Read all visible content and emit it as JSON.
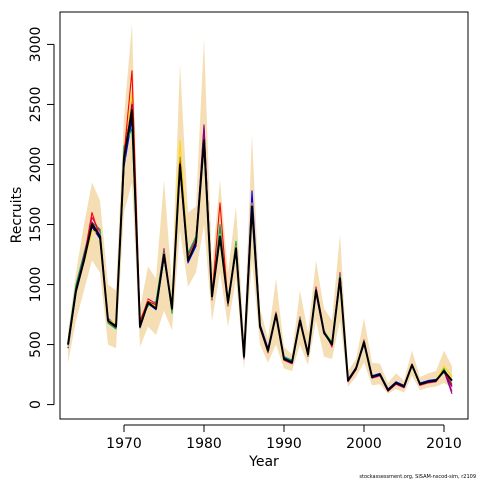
{
  "chart_data": {
    "type": "line",
    "xlabel": "Year",
    "ylabel": "Recruits",
    "xlim": [
      1962,
      2013
    ],
    "ylim": [
      -120,
      3270
    ],
    "x_ticks": [
      1970,
      1980,
      1990,
      2000,
      2010
    ],
    "y_ticks": [
      0,
      500,
      1000,
      1500,
      2000,
      2500,
      3000
    ],
    "footer": "stockassessment.org, SISAM-nscod-sim, r2109",
    "band_color": "#F5DEB3",
    "years": [
      1963,
      1964,
      1965,
      1966,
      1967,
      1968,
      1969,
      1970,
      1971,
      1972,
      1973,
      1974,
      1975,
      1976,
      1977,
      1978,
      1979,
      1980,
      1981,
      1982,
      1983,
      1984,
      1985,
      1986,
      1987,
      1988,
      1989,
      1990,
      1991,
      1992,
      1993,
      1994,
      1995,
      1996,
      1997,
      1998,
      1999,
      2000,
      2001,
      2002,
      2003,
      2004,
      2005,
      2006,
      2007,
      2008,
      2009,
      2010,
      2011
    ],
    "band_lower": [
      350,
      700,
      950,
      1200,
      1100,
      500,
      470,
      1600,
      1850,
      480,
      650,
      580,
      780,
      620,
      1450,
      980,
      1100,
      1500,
      700,
      1100,
      650,
      1050,
      300,
      1200,
      500,
      350,
      500,
      300,
      280,
      500,
      330,
      700,
      400,
      380,
      700,
      150,
      230,
      350,
      160,
      170,
      90,
      130,
      100,
      240,
      120,
      140,
      150,
      180,
      140
    ],
    "band_upper": [
      600,
      1100,
      1500,
      1850,
      1700,
      1000,
      950,
      2400,
      3170,
      800,
      1150,
      1050,
      1870,
      1000,
      2840,
      1600,
      1650,
      3050,
      1150,
      1870,
      1100,
      1650,
      550,
      2250,
      800,
      550,
      1050,
      480,
      420,
      950,
      600,
      1200,
      800,
      700,
      1420,
      280,
      380,
      720,
      350,
      340,
      180,
      260,
      200,
      450,
      230,
      260,
      280,
      450,
      320
    ],
    "series": [
      {
        "color": "#000000",
        "values": [
          500,
          950,
          1200,
          1500,
          1400,
          700,
          650,
          2050,
          2450,
          650,
          850,
          800,
          1250,
          800,
          2000,
          1200,
          1350,
          2200,
          900,
          1400,
          850,
          1300,
          400,
          1650,
          650,
          450,
          750,
          380,
          350,
          700,
          420,
          950,
          600,
          500,
          1050,
          200,
          300,
          520,
          230,
          250,
          120,
          180,
          150,
          330,
          170,
          190,
          200,
          280,
          200
        ]
      },
      {
        "color": "#E4007C",
        "values": [
          490,
          980,
          1230,
          1560,
          1440,
          690,
          640,
          2100,
          2520,
          670,
          880,
          840,
          1300,
          780,
          2060,
          1240,
          1380,
          2250,
          870,
          1450,
          820,
          1340,
          380,
          1700,
          640,
          430,
          770,
          370,
          340,
          730,
          400,
          980,
          620,
          480,
          1100,
          190,
          290,
          540,
          220,
          240,
          110,
          170,
          140,
          340,
          160,
          180,
          190,
          290,
          110
        ]
      },
      {
        "color": "#0000FF",
        "values": [
          470,
          930,
          1190,
          1480,
          1380,
          720,
          660,
          1980,
          2380,
          640,
          840,
          790,
          1220,
          820,
          1960,
          1180,
          1320,
          2310,
          920,
          1380,
          870,
          1280,
          420,
          1780,
          670,
          470,
          740,
          390,
          360,
          690,
          440,
          930,
          590,
          510,
          1030,
          210,
          310,
          500,
          240,
          260,
          130,
          190,
          160,
          320,
          180,
          200,
          210,
          270,
          150
        ]
      },
      {
        "color": "#00A651",
        "values": [
          520,
          1000,
          1260,
          1520,
          1460,
          680,
          630,
          2150,
          2300,
          690,
          820,
          860,
          1280,
          760,
          2050,
          1260,
          1400,
          2150,
          880,
          1500,
          830,
          1360,
          390,
          1600,
          660,
          440,
          760,
          400,
          370,
          720,
          410,
          960,
          610,
          520,
          1080,
          200,
          300,
          530,
          230,
          250,
          120,
          180,
          150,
          330,
          170,
          190,
          200,
          300,
          170
        ]
      },
      {
        "color": "#FFD700",
        "values": [
          480,
          960,
          1180,
          1450,
          1420,
          710,
          670,
          2000,
          2600,
          660,
          870,
          810,
          1260,
          810,
          2200,
          1220,
          1360,
          2180,
          890,
          1420,
          860,
          1320,
          410,
          1680,
          650,
          450,
          750,
          380,
          350,
          700,
          420,
          950,
          600,
          500,
          1050,
          200,
          300,
          520,
          230,
          250,
          120,
          180,
          150,
          330,
          170,
          190,
          200,
          320,
          230
        ]
      },
      {
        "color": "#FF0000",
        "values": [
          510,
          940,
          1220,
          1600,
          1390,
          700,
          650,
          2080,
          2780,
          700,
          860,
          830,
          1240,
          790,
          2020,
          1210,
          1340,
          2270,
          910,
          1680,
          840,
          1310,
          400,
          1650,
          640,
          450,
          750,
          370,
          350,
          700,
          420,
          950,
          600,
          500,
          1050,
          200,
          300,
          520,
          230,
          250,
          120,
          180,
          150,
          330,
          170,
          190,
          200,
          280,
          160
        ]
      },
      {
        "color": "#8B008B",
        "values": [
          500,
          960,
          1240,
          1520,
          1410,
          700,
          650,
          2050,
          2500,
          650,
          850,
          800,
          1250,
          800,
          2000,
          1200,
          1350,
          2330,
          900,
          1400,
          850,
          1300,
          400,
          1650,
          650,
          450,
          750,
          380,
          350,
          700,
          420,
          950,
          600,
          500,
          1050,
          200,
          300,
          520,
          230,
          250,
          120,
          180,
          150,
          330,
          170,
          190,
          200,
          280,
          90
        ]
      }
    ]
  }
}
